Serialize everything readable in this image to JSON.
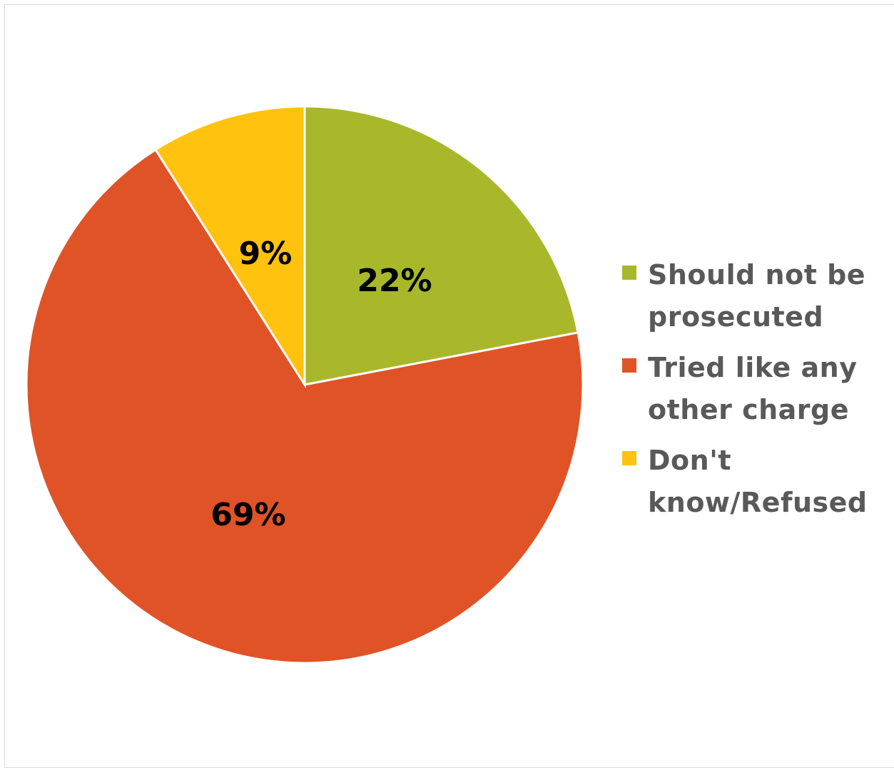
{
  "chart_data": {
    "type": "pie",
    "title": "",
    "slices": [
      {
        "label": "Should not be prosecuted",
        "value": 22,
        "display": "22%",
        "color": "#A8B82A"
      },
      {
        "label": "Tried like any other charge",
        "value": 69,
        "display": "69%",
        "color": "#E05327"
      },
      {
        "label": "Don't know/Refused",
        "value": 9,
        "display": "9%",
        "color": "#FFC20E"
      }
    ],
    "legend_position": "right",
    "legend": [
      {
        "text": "Should not be prosecuted",
        "color": "#A8B82A"
      },
      {
        "text": "Tried like any other charge",
        "color": "#E05327"
      },
      {
        "text": "Don't know/Refused",
        "color": "#FFC20E"
      }
    ]
  }
}
